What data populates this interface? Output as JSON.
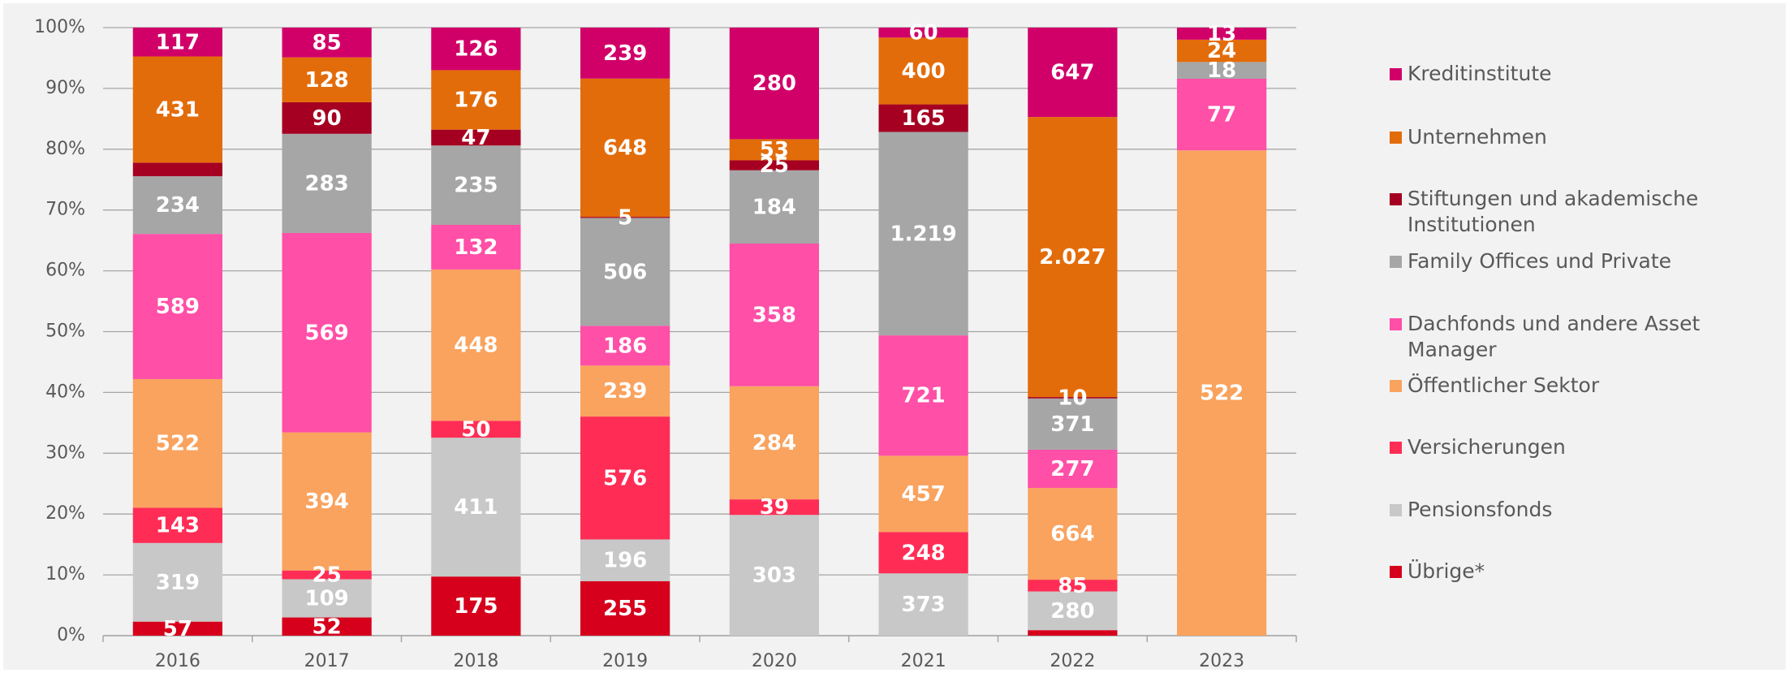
{
  "chart_data": {
    "type": "bar",
    "stack": "percent",
    "categories": [
      "2016",
      "2017",
      "2018",
      "2019",
      "2020",
      "2021",
      "2022",
      "2023"
    ],
    "ylim": [
      0,
      100
    ],
    "yticks": [
      {
        "value": 0,
        "label": "0%"
      },
      {
        "value": 10,
        "label": "10%"
      },
      {
        "value": 20,
        "label": "20%"
      },
      {
        "value": 30,
        "label": "30%"
      },
      {
        "value": 40,
        "label": "40%"
      },
      {
        "value": 50,
        "label": "50%"
      },
      {
        "value": 60,
        "label": "60%"
      },
      {
        "value": 70,
        "label": "70%"
      },
      {
        "value": 80,
        "label": "80%"
      },
      {
        "value": 90,
        "label": "90%"
      },
      {
        "value": 100,
        "label": "100%"
      }
    ],
    "grid": true,
    "legend": "right",
    "series": [
      {
        "name": "Übrige*",
        "color": "#d6001c",
        "values": [
          57,
          52,
          175,
          255,
          0,
          0,
          40,
          0
        ],
        "value_labels": [
          "57",
          "52",
          "175",
          "255",
          null,
          null,
          null,
          null
        ]
      },
      {
        "name": "Pensionsfonds",
        "color": "#c8c8c8",
        "values": [
          319,
          109,
          411,
          196,
          303,
          373,
          280,
          0
        ],
        "value_labels": [
          "319",
          "109",
          "411",
          "196",
          "303",
          "373",
          "280",
          null
        ]
      },
      {
        "name": "Versicherungen",
        "color": "#ff2d55",
        "values": [
          143,
          25,
          50,
          576,
          39,
          248,
          85,
          0
        ],
        "value_labels": [
          "143",
          "25",
          "50",
          "576",
          "39",
          "248",
          "85",
          null
        ]
      },
      {
        "name": "Öffentlicher Sektor",
        "color": "#f9a35f",
        "values": [
          522,
          394,
          448,
          239,
          284,
          457,
          664,
          522
        ],
        "value_labels": [
          "522",
          "394",
          "448",
          "239",
          "284",
          "457",
          "664",
          "522"
        ]
      },
      {
        "name": "Dachfonds und andere Asset Manager",
        "color": "#ff4fa7",
        "values": [
          589,
          569,
          132,
          186,
          358,
          721,
          277,
          77
        ],
        "value_labels": [
          "589",
          "569",
          "132",
          "186",
          "358",
          "721",
          "277",
          "77"
        ]
      },
      {
        "name": "Family Offices und Private",
        "color": "#a6a6a6",
        "values": [
          234,
          283,
          235,
          506,
          184,
          1219,
          371,
          18
        ],
        "value_labels": [
          "234",
          "283",
          "235",
          "506",
          "184",
          "1.219",
          "371",
          "18"
        ]
      },
      {
        "name": "Stiftungen und akademische Institutionen",
        "color": "#a50021",
        "values": [
          55,
          90,
          47,
          5,
          25,
          165,
          10,
          0
        ],
        "value_labels": [
          null,
          "90",
          "47",
          "5",
          "25",
          "165",
          "10",
          null
        ]
      },
      {
        "name": "Unternehmen",
        "color": "#e36c0a",
        "values": [
          431,
          128,
          176,
          648,
          53,
          400,
          2027,
          24
        ],
        "value_labels": [
          "431",
          "128",
          "176",
          "648",
          "53",
          "400",
          "2.027",
          "24"
        ]
      },
      {
        "name": "Kreditinstitute",
        "color": "#d10069",
        "values": [
          117,
          85,
          126,
          239,
          280,
          60,
          647,
          13
        ],
        "value_labels": [
          "117",
          "85",
          "126",
          "239",
          "280",
          "60",
          "647",
          "13"
        ]
      }
    ]
  }
}
